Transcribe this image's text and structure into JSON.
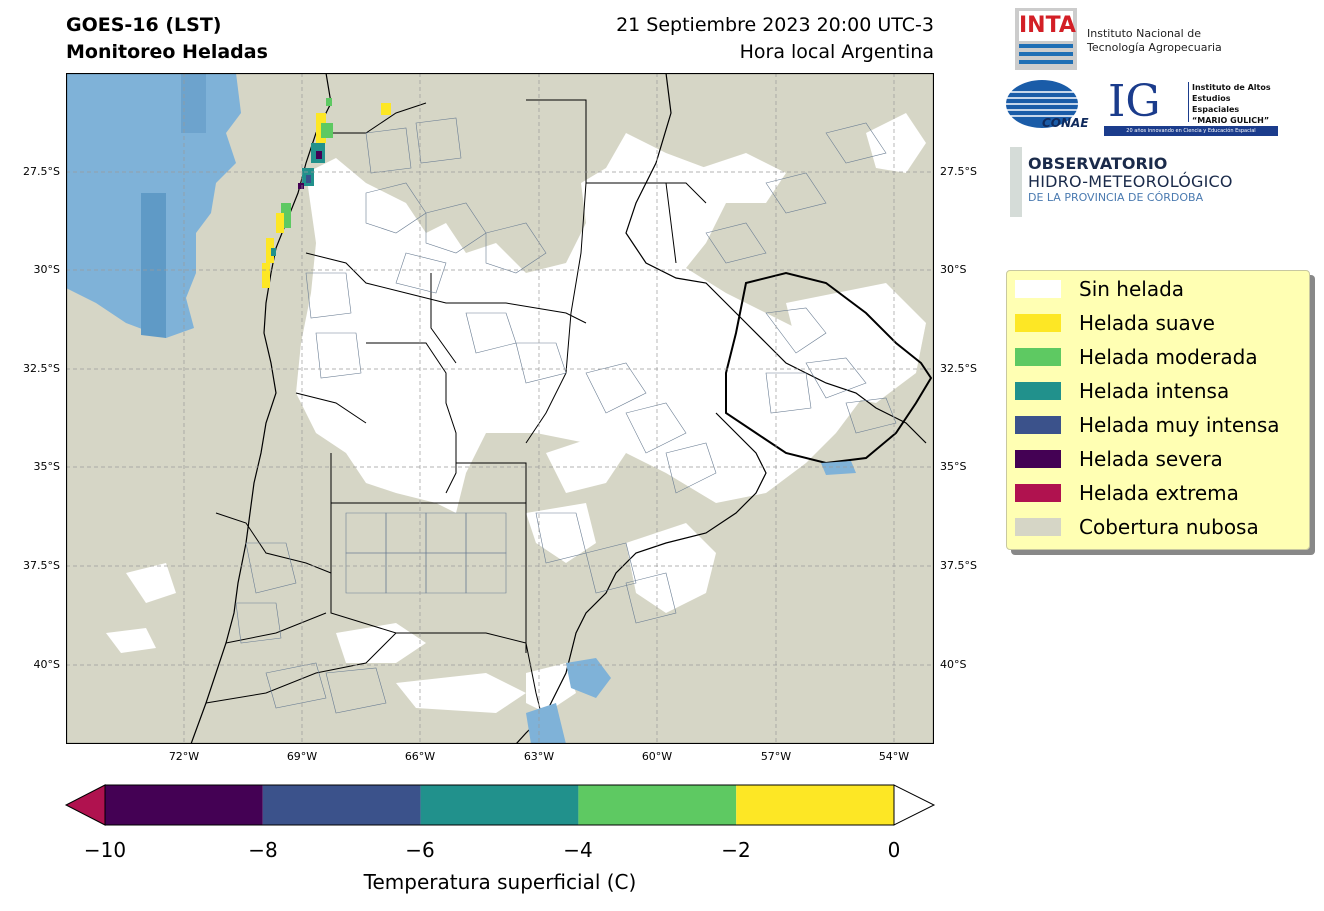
{
  "header": {
    "title_line1": "GOES-16 (LST)",
    "title_line2": "Monitoreo Heladas",
    "date_line": "21 Septiembre 2023 20:00 UTC-3",
    "local_line": "Hora local Argentina"
  },
  "map": {
    "lat_ticks": [
      "27.5°S",
      "30°S",
      "32.5°S",
      "35°S",
      "37.5°S",
      "40°S"
    ],
    "lon_ticks": [
      "72°W",
      "69°W",
      "66°W",
      "63°W",
      "60°W",
      "57°W",
      "54°W"
    ],
    "colors": {
      "cloud": "#d6d6c6",
      "no_frost": "#ffffff",
      "sea_ice_blue": "#7fb2d8",
      "boundary": "#000000",
      "district": "#6a7d93",
      "grid": "#9a9a9a"
    }
  },
  "legend": {
    "items": [
      {
        "label": "Sin helada",
        "color": "#ffffff"
      },
      {
        "label": "Helada suave",
        "color": "#fde725"
      },
      {
        "label": "Helada moderada",
        "color": "#5ec962"
      },
      {
        "label": "Helada intensa",
        "color": "#21918c"
      },
      {
        "label": "Helada muy intensa",
        "color": "#3b528b"
      },
      {
        "label": "Helada severa",
        "color": "#440154"
      },
      {
        "label": "Helada extrema",
        "color": "#b0124f"
      },
      {
        "label": "Cobertura nubosa",
        "color": "#d6d6c6"
      }
    ]
  },
  "colorbar": {
    "ticks": [
      "−10",
      "−8",
      "−6",
      "−4",
      "−2",
      "0"
    ],
    "label": "Temperatura superficial (C)",
    "under_color": "#b0124f",
    "over_color": "#ffffff",
    "bins": [
      {
        "from": -10,
        "to": -8,
        "color": "#440154"
      },
      {
        "from": -8,
        "to": -6,
        "color": "#3b528b"
      },
      {
        "from": -6,
        "to": -4,
        "color": "#21918c"
      },
      {
        "from": -4,
        "to": -2,
        "color": "#5ec962"
      },
      {
        "from": -2,
        "to": 0,
        "color": "#fde725"
      }
    ]
  },
  "logos": {
    "inta_mark": "INTA",
    "inta_name_line1": "Instituto Nacional de",
    "inta_name_line2": "Tecnología Agropecuaria",
    "conae_mark": "CONAE",
    "ig_mark": "IG",
    "ig_line1": "Instituto de Altos",
    "ig_line2": "Estudios Espaciales",
    "ig_line3": "“MARIO GULICH”",
    "ig_tagline": "20 años innovando en Ciencia y Educación Espacial",
    "obs_line1": "OBSERVATORIO",
    "obs_line2": "HIDRO-METEOROLÓGICO",
    "obs_line3": "DE LA PROVINCIA DE CÓRDOBA"
  }
}
